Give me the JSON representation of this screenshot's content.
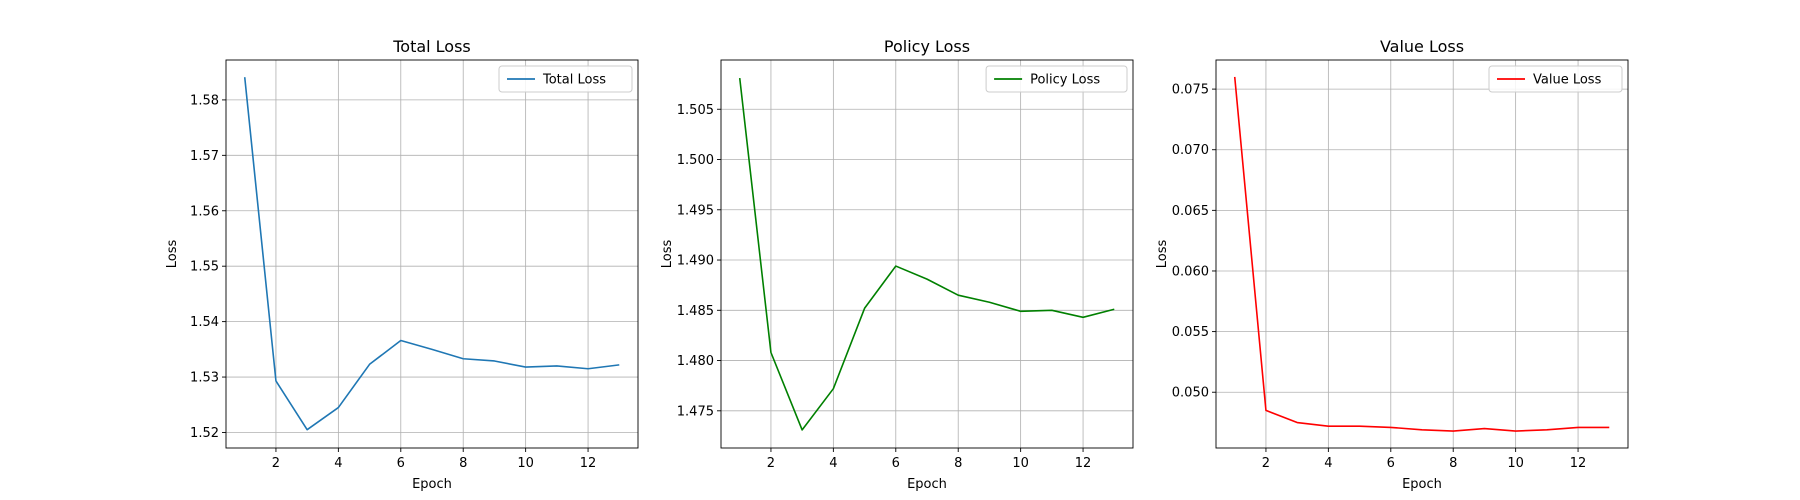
{
  "chart_data": [
    {
      "type": "line",
      "title": "Total Loss",
      "xlabel": "Epoch",
      "ylabel": "Loss",
      "grid": true,
      "legend_position": "top-right",
      "xlim": [
        0.4,
        13.6
      ],
      "ylim": [
        1.5172,
        1.5872
      ],
      "xticks": [
        2,
        4,
        6,
        8,
        10,
        12
      ],
      "xtick_labels": [
        "2",
        "4",
        "6",
        "8",
        "10",
        "12"
      ],
      "yticks": [
        1.52,
        1.53,
        1.54,
        1.55,
        1.56,
        1.57,
        1.58
      ],
      "ytick_labels": [
        "1.52",
        "1.53",
        "1.54",
        "1.55",
        "1.56",
        "1.57",
        "1.58"
      ],
      "series": [
        {
          "name": "Total Loss",
          "color": "#1f77b4",
          "x": [
            1,
            2,
            3,
            4,
            5,
            6,
            7,
            8,
            9,
            10,
            11,
            12,
            13
          ],
          "y": [
            1.5841,
            1.5293,
            1.5205,
            1.5245,
            1.5323,
            1.5366,
            1.535,
            1.5333,
            1.5329,
            1.5318,
            1.532,
            1.5315,
            1.5322
          ]
        }
      ]
    },
    {
      "type": "line",
      "title": "Policy Loss",
      "xlabel": "Epoch",
      "ylabel": "Loss",
      "grid": true,
      "legend_position": "top-right",
      "xlim": [
        0.4,
        13.6
      ],
      "ylim": [
        1.4713,
        1.5099
      ],
      "xticks": [
        2,
        4,
        6,
        8,
        10,
        12
      ],
      "xtick_labels": [
        "2",
        "4",
        "6",
        "8",
        "10",
        "12"
      ],
      "yticks": [
        1.475,
        1.48,
        1.485,
        1.49,
        1.495,
        1.5,
        1.505
      ],
      "ytick_labels": [
        "1.475",
        "1.480",
        "1.485",
        "1.490",
        "1.495",
        "1.500",
        "1.505"
      ],
      "series": [
        {
          "name": "Policy Loss",
          "color": "#008000",
          "x": [
            1,
            2,
            3,
            4,
            5,
            6,
            7,
            8,
            9,
            10,
            11,
            12,
            13
          ],
          "y": [
            1.5081,
            1.4808,
            1.4731,
            1.4772,
            1.4852,
            1.4894,
            1.4881,
            1.4865,
            1.4858,
            1.4849,
            1.485,
            1.4843,
            1.4851
          ]
        }
      ]
    },
    {
      "type": "line",
      "title": "Value Loss",
      "xlabel": "Epoch",
      "ylabel": "Loss",
      "grid": true,
      "legend_position": "top-right",
      "xlim": [
        0.4,
        13.6
      ],
      "ylim": [
        0.0454,
        0.0774
      ],
      "xticks": [
        2,
        4,
        6,
        8,
        10,
        12
      ],
      "xtick_labels": [
        "2",
        "4",
        "6",
        "8",
        "10",
        "12"
      ],
      "yticks": [
        0.05,
        0.055,
        0.06,
        0.065,
        0.07,
        0.075
      ],
      "ytick_labels": [
        "0.050",
        "0.055",
        "0.060",
        "0.065",
        "0.070",
        "0.075"
      ],
      "series": [
        {
          "name": "Value Loss",
          "color": "#ff0000",
          "x": [
            1,
            2,
            3,
            4,
            5,
            6,
            7,
            8,
            9,
            10,
            11,
            12,
            13
          ],
          "y": [
            0.076,
            0.0485,
            0.0475,
            0.0472,
            0.0472,
            0.0471,
            0.0469,
            0.0468,
            0.047,
            0.0468,
            0.0469,
            0.0471,
            0.0471
          ]
        }
      ]
    }
  ]
}
